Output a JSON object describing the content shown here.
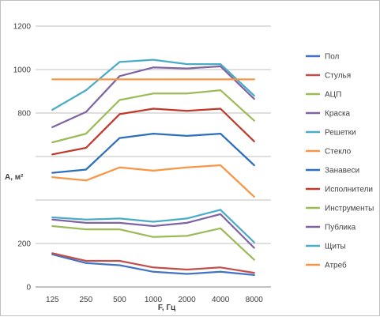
{
  "chart_data": {
    "type": "line",
    "title": "",
    "xlabel": "F, Гц",
    "ylabel": "A, м²",
    "ylim": [
      0,
      1200
    ],
    "yticks": [
      0,
      200,
      400,
      600,
      800,
      1000,
      1200
    ],
    "y_tick_labels": [
      "0",
      "200",
      "",
      "",
      "800",
      "1000",
      "1200"
    ],
    "grid": "horizontal",
    "legend_position": "right",
    "categories": [
      "125",
      "250",
      "500",
      "1000",
      "2000",
      "4000",
      "8000"
    ],
    "series": [
      {
        "name": "Пол",
        "color": "#4472c4",
        "values": [
          150,
          110,
          100,
          70,
          60,
          70,
          55
        ]
      },
      {
        "name": "Стулья",
        "color": "#c0504d",
        "values": [
          155,
          120,
          120,
          90,
          80,
          90,
          65
        ]
      },
      {
        "name": "АЦП",
        "color": "#9bbb59",
        "values": [
          280,
          265,
          265,
          230,
          235,
          270,
          125
        ]
      },
      {
        "name": "Краска",
        "color": "#8064a2",
        "values": [
          310,
          295,
          295,
          280,
          295,
          335,
          180
        ]
      },
      {
        "name": "Решетки",
        "color": "#4bacc6",
        "values": [
          320,
          310,
          315,
          300,
          315,
          355,
          205
        ]
      },
      {
        "name": "Стекло",
        "color": "#f79646",
        "values": [
          505,
          490,
          550,
          535,
          550,
          560,
          415
        ]
      },
      {
        "name": "Занавеси",
        "color": "#2c6fbb",
        "values": [
          525,
          540,
          685,
          705,
          695,
          705,
          560
        ]
      },
      {
        "name": "Исполнители",
        "color": "#c0392b",
        "values": [
          610,
          640,
          795,
          820,
          810,
          820,
          670
        ]
      },
      {
        "name": "Инструменты",
        "color": "#9bbb59",
        "values": [
          665,
          705,
          860,
          890,
          890,
          905,
          765
        ]
      },
      {
        "name": "Публика",
        "color": "#8064a2",
        "values": [
          735,
          805,
          970,
          1010,
          1005,
          1015,
          865
        ]
      },
      {
        "name": "Щиты",
        "color": "#4bacc6",
        "values": [
          815,
          905,
          1035,
          1045,
          1025,
          1025,
          880
        ]
      },
      {
        "name": "Атреб",
        "color": "#f79646",
        "values": [
          955,
          955,
          955,
          955,
          955,
          955,
          955
        ]
      }
    ]
  }
}
